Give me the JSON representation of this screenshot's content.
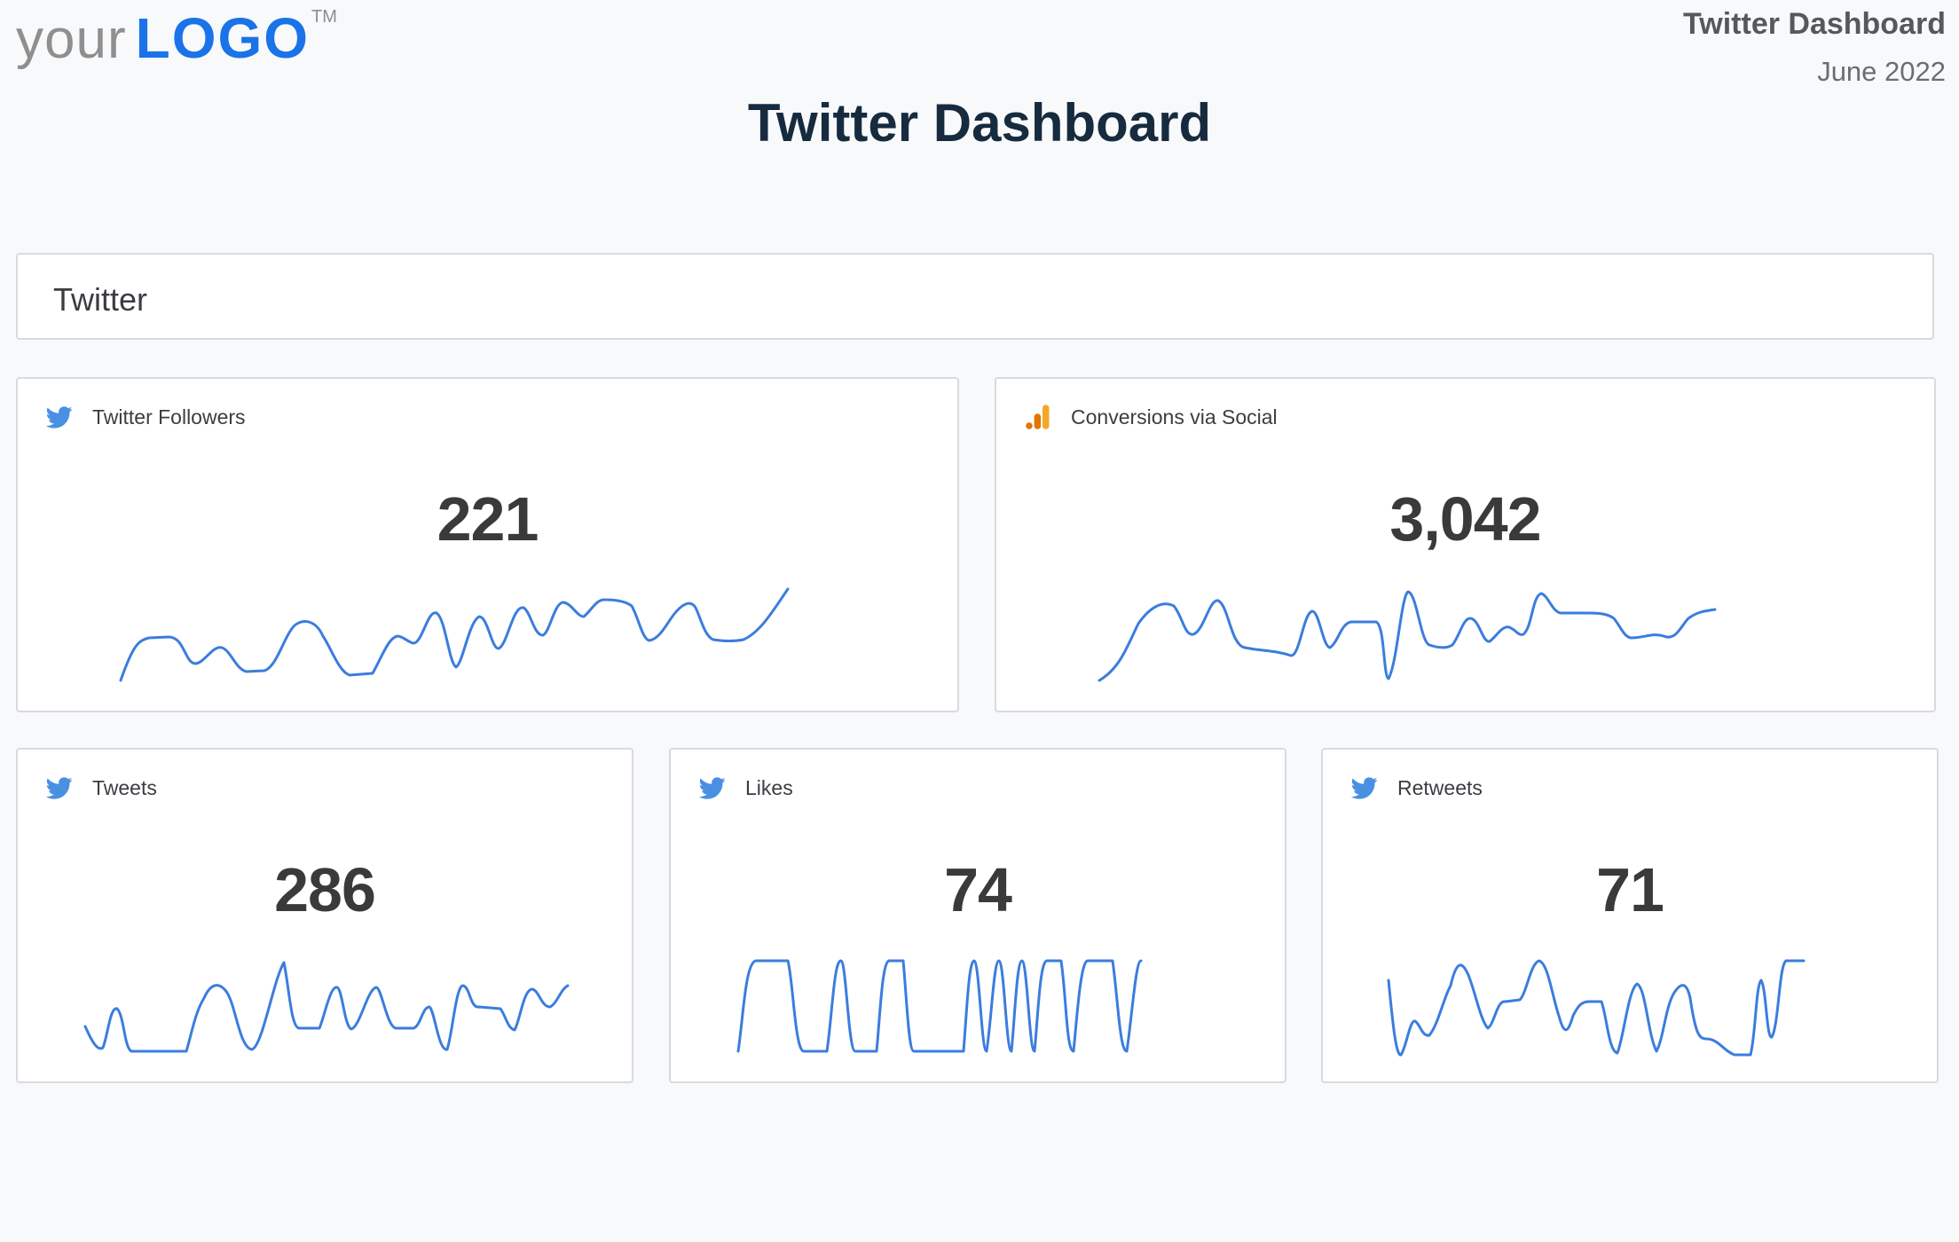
{
  "logo": {
    "prefix": "your",
    "brand": "LOGO",
    "tm": "TM"
  },
  "header": {
    "report_title": "Twitter Dashboard",
    "period": "June 2022"
  },
  "page_title": "Twitter Dashboard",
  "section": {
    "title": "Twitter"
  },
  "colors": {
    "accent": "#1a73e8",
    "sparkline": "#3b7ddd",
    "twitter_icon": "#4a90e2",
    "analytics_icon": "#f4a829"
  },
  "cards": [
    {
      "label": "Twitter Followers",
      "value": "221",
      "icon": "twitter-bird-icon"
    },
    {
      "label": "Conversions via Social",
      "value": "3,042",
      "icon": "analytics-bars-icon"
    },
    {
      "label": "Tweets",
      "value": "286",
      "icon": "twitter-bird-icon"
    },
    {
      "label": "Likes",
      "value": "74",
      "icon": "twitter-bird-icon"
    },
    {
      "label": "Retweets",
      "value": "71",
      "icon": "twitter-bird-icon"
    }
  ]
}
